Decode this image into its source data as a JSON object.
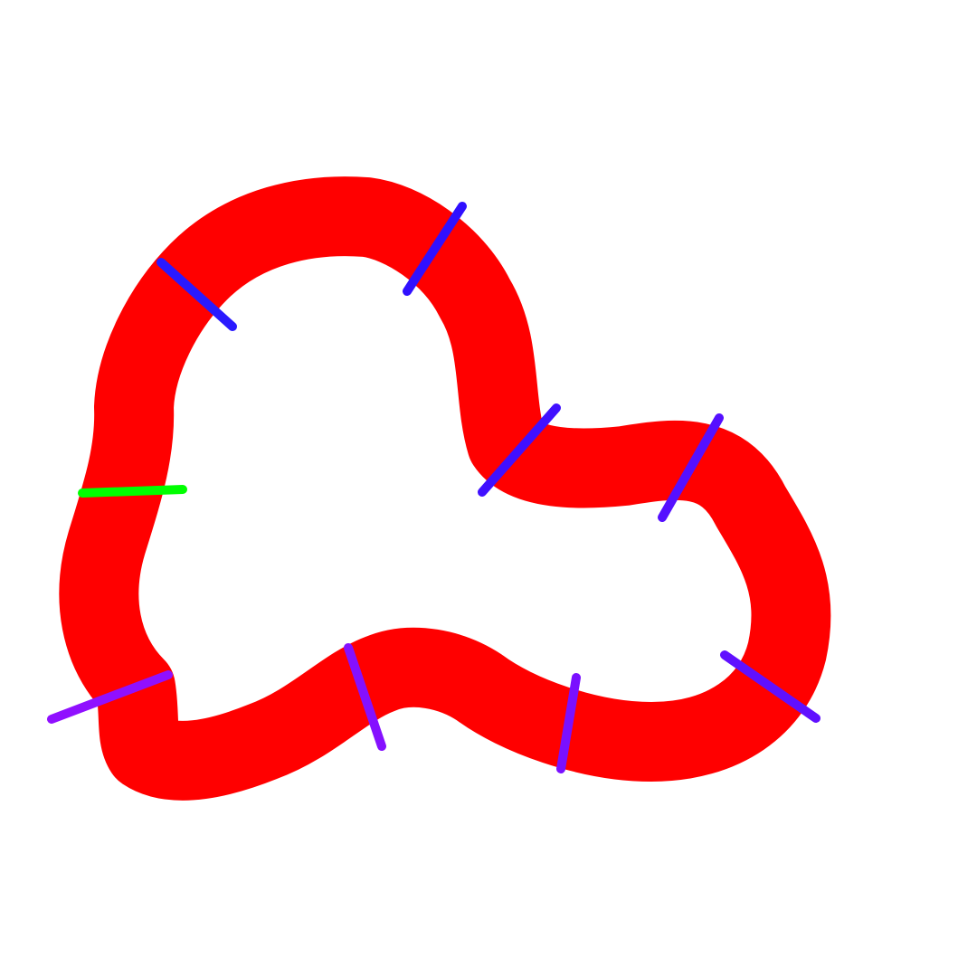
{
  "canvas": {
    "background": "#ffffff"
  },
  "track": {
    "color": "#ff0000"
  },
  "start_line": {
    "color": "#00ff00"
  },
  "checkpoints": [
    {
      "id": 1,
      "color": "#2a1aff"
    },
    {
      "id": 2,
      "color": "#3010ff"
    },
    {
      "id": 3,
      "color": "#4010ff"
    },
    {
      "id": 4,
      "color": "#5510ff"
    },
    {
      "id": 5,
      "color": "#6010ff"
    },
    {
      "id": 6,
      "color": "#7a10ff"
    },
    {
      "id": 7,
      "color": "#8510ff"
    },
    {
      "id": 8,
      "color": "#9010ff"
    },
    {
      "id": 9,
      "color": "#a010ff"
    }
  ]
}
